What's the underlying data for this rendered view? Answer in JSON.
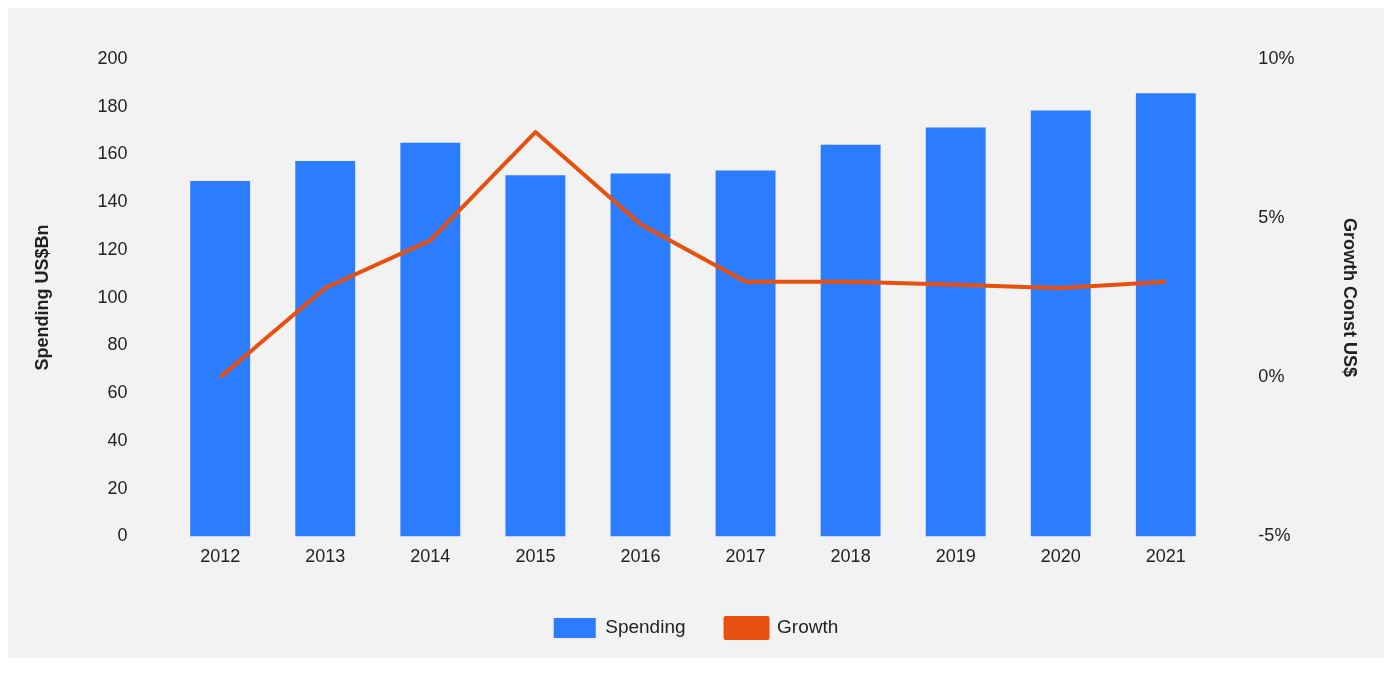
{
  "chart_data": {
    "type": "bar",
    "ylabel": "Spending US$Bn",
    "y2label": "Growth Const US$",
    "categories": [
      "2012",
      "2013",
      "2014",
      "2015",
      "2016",
      "2017",
      "2018",
      "2019",
      "2020",
      "2021"
    ],
    "series": [
      {
        "name": "Spending",
        "color": "#2b7cff",
        "values": [
          148.8,
          157.2,
          164.8,
          151.2,
          152,
          153.2,
          164,
          171.2,
          178.4,
          185.6
        ]
      },
      {
        "name": "Growth",
        "type": "line",
        "axis": "y2",
        "color": "#e8500f",
        "values": [
          0,
          2.8,
          4.3,
          7.7,
          4.8,
          3.0,
          3.0,
          2.9,
          2.8,
          3.0
        ]
      }
    ],
    "ylim": [
      0,
      200
    ],
    "yticks": [
      0,
      20,
      40,
      60,
      80,
      100,
      120,
      140,
      160,
      180,
      200
    ],
    "y2lim": [
      -5,
      10
    ],
    "y2ticks": [
      {
        "value": -5,
        "label": "-5%"
      },
      {
        "value": 0,
        "label": "0%"
      },
      {
        "value": 5,
        "label": "5%"
      },
      {
        "value": 10,
        "label": "10%"
      }
    ],
    "legend": "bottom",
    "grid": false,
    "marker": "none",
    "line_style": "solid"
  }
}
